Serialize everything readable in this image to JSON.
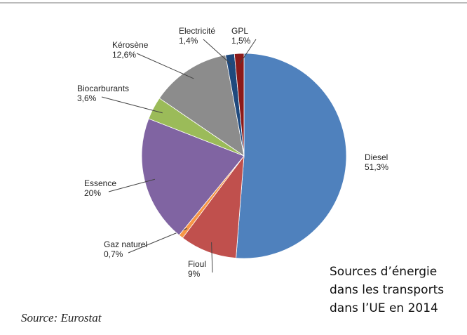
{
  "chart_data": {
    "type": "pie",
    "categories": [
      "Diesel",
      "Fioul",
      "Gaz naturel",
      "Essence",
      "Biocarburants",
      "Kérosène",
      "Electricité",
      "GPL"
    ],
    "values": [
      51.3,
      9,
      0.7,
      20,
      3.6,
      12.6,
      1.4,
      1.5
    ],
    "value_labels": [
      "51,3%",
      "9%",
      "0,7%",
      "20%",
      "3,6%",
      "12,6%",
      "1,4%",
      "1,5%"
    ],
    "colors": [
      "#4f81bd",
      "#c0504d",
      "#f79646",
      "#8064a2",
      "#9bbb59",
      "#8c8c8c",
      "#1f497d",
      "#8b1a1a"
    ],
    "annotation": [
      "Sources d’énergie",
      "dans les transports",
      "dans l’UE en 2014"
    ],
    "source": "Source: Eurostat"
  }
}
